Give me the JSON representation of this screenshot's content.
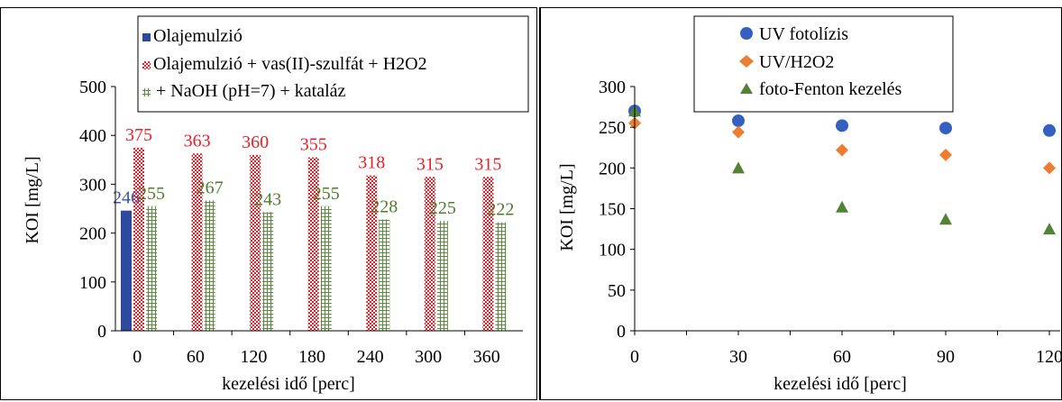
{
  "chart_data": [
    {
      "type": "bar",
      "xlabel": "kezelési idő [perc]",
      "ylabel": "KOI [mg/L]",
      "ylim": [
        0,
        500
      ],
      "yticks": [
        0,
        100,
        200,
        300,
        400,
        500
      ],
      "categories": [
        "0",
        "60",
        "120",
        "180",
        "240",
        "300",
        "360"
      ],
      "legend_position": "top-center",
      "series": [
        {
          "name": "Olajemulzió",
          "color": "#2e4a9e",
          "pattern": "solid",
          "values": [
            246,
            null,
            null,
            null,
            null,
            null,
            null
          ],
          "labels": [
            "246",
            "",
            "",
            "",
            "",
            "",
            ""
          ],
          "label_color": "#3a55a8"
        },
        {
          "name": "Olajemulzió + vas(II)-szulfát + H2O2",
          "color": "#e8202a",
          "pattern": "checker",
          "values": [
            375,
            363,
            360,
            355,
            318,
            315,
            315
          ],
          "labels": [
            "375",
            "363",
            "360",
            "355",
            "318",
            "315",
            "315"
          ],
          "label_color": "#e8202a"
        },
        {
          "name": "+ NaOH (pH=7) + kataláz",
          "color": "#5a8a3a",
          "pattern": "grid",
          "values": [
            255,
            267,
            243,
            255,
            228,
            225,
            222
          ],
          "labels": [
            "255",
            "267",
            "243",
            "255",
            "228",
            "225",
            "222"
          ],
          "label_color": "#4e7d2c"
        }
      ]
    },
    {
      "type": "scatter",
      "xlabel": "kezelési idő [perc]",
      "ylabel": "KOI [mg/L]",
      "ylim": [
        0,
        300
      ],
      "yticks": [
        0,
        50,
        100,
        150,
        200,
        250,
        300
      ],
      "xlim": [
        0,
        120
      ],
      "xticks": [
        0,
        30,
        60,
        90,
        120
      ],
      "legend_position": "top-right",
      "series": [
        {
          "name": "UV fotolízis",
          "marker": "circle",
          "color": "#3461c1",
          "x": [
            0,
            30,
            60,
            90,
            120
          ],
          "y": [
            270,
            258,
            252,
            249,
            246
          ]
        },
        {
          "name": "UV/H2O2",
          "marker": "diamond",
          "color": "#ed7d31",
          "x": [
            0,
            30,
            60,
            90,
            120
          ],
          "y": [
            255,
            244,
            222,
            216,
            200
          ]
        },
        {
          "name": "foto-Fenton kezelés",
          "marker": "triangle",
          "color": "#548235",
          "x": [
            0,
            30,
            60,
            90,
            120
          ],
          "y": [
            270,
            200,
            152,
            137,
            125
          ]
        }
      ]
    }
  ]
}
